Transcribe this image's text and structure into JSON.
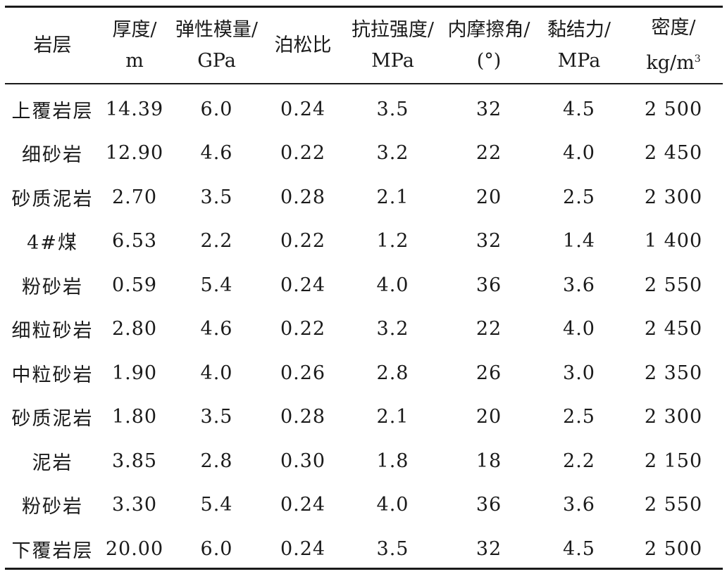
{
  "table": {
    "headers": [
      {
        "line1": "岩层",
        "line2": ""
      },
      {
        "line1": "厚度/",
        "line2": "m"
      },
      {
        "line1": "弹性模量/",
        "line2": "GPa"
      },
      {
        "line1": "泊松比",
        "line2": ""
      },
      {
        "line1": "抗拉强度/",
        "line2": "MPa"
      },
      {
        "line1": "内摩擦角/",
        "line2": "(°)"
      },
      {
        "line1": "黏结力/",
        "line2": "MPa"
      },
      {
        "line1": "密度/",
        "line2": "kg/m",
        "sup": "3"
      }
    ],
    "rows": [
      [
        "上覆岩层",
        "14.39",
        "6.0",
        "0.24",
        "3.5",
        "32",
        "4.5",
        "2 500"
      ],
      [
        "细砂岩",
        "12.90",
        "4.6",
        "0.22",
        "3.2",
        "22",
        "4.0",
        "2 450"
      ],
      [
        "砂质泥岩",
        "2.70",
        "3.5",
        "0.28",
        "2.1",
        "20",
        "2.5",
        "2 300"
      ],
      [
        "4#煤",
        "6.53",
        "2.2",
        "0.22",
        "1.2",
        "32",
        "1.4",
        "1 400"
      ],
      [
        "粉砂岩",
        "0.59",
        "5.4",
        "0.24",
        "4.0",
        "36",
        "3.6",
        "2 550"
      ],
      [
        "细粒砂岩",
        "2.80",
        "4.6",
        "0.22",
        "3.2",
        "22",
        "4.0",
        "2 450"
      ],
      [
        "中粒砂岩",
        "1.90",
        "4.0",
        "0.26",
        "2.8",
        "26",
        "3.0",
        "2 350"
      ],
      [
        "砂质泥岩",
        "1.80",
        "3.5",
        "0.28",
        "2.1",
        "20",
        "2.5",
        "2 300"
      ],
      [
        "泥岩",
        "3.85",
        "2.8",
        "0.30",
        "1.8",
        "18",
        "2.2",
        "2 150"
      ],
      [
        "粉砂岩",
        "3.30",
        "5.4",
        "0.24",
        "4.0",
        "36",
        "3.6",
        "2 550"
      ],
      [
        "下覆岩层",
        "20.00",
        "6.0",
        "0.24",
        "3.5",
        "32",
        "4.5",
        "2 500"
      ]
    ]
  }
}
